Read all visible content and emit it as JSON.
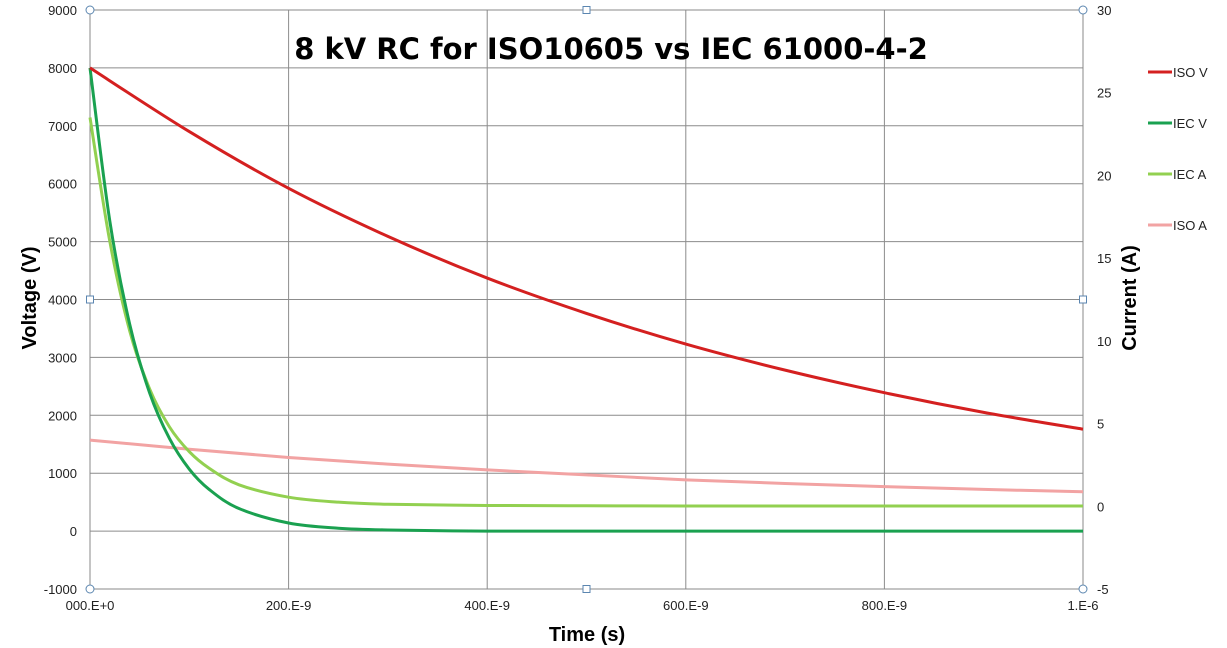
{
  "chart_data": {
    "type": "line",
    "title": "8 kV RC for  ISO10605 vs IEC 61000-4-2",
    "xlabel": "Time (s)",
    "ylabel": "Voltage (V)",
    "y2label": "Current (A)",
    "xlim": [
      0,
      1e-06
    ],
    "ylim": [
      -1000,
      9000
    ],
    "y2lim": [
      -5,
      30
    ],
    "x_ticks": [
      {
        "value": 0,
        "label": "000.E+0"
      },
      {
        "value": 2e-07,
        "label": "200.E-9"
      },
      {
        "value": 4e-07,
        "label": "400.E-9"
      },
      {
        "value": 6e-07,
        "label": "600.E-9"
      },
      {
        "value": 8e-07,
        "label": "800.E-9"
      },
      {
        "value": 1e-06,
        "label": "1.E-6"
      }
    ],
    "y_ticks": [
      {
        "value": -1000,
        "label": "-1000"
      },
      {
        "value": 0,
        "label": "0"
      },
      {
        "value": 1000,
        "label": "1000"
      },
      {
        "value": 2000,
        "label": "2000"
      },
      {
        "value": 3000,
        "label": "3000"
      },
      {
        "value": 4000,
        "label": "4000"
      },
      {
        "value": 5000,
        "label": "5000"
      },
      {
        "value": 6000,
        "label": "6000"
      },
      {
        "value": 7000,
        "label": "7000"
      },
      {
        "value": 8000,
        "label": "8000"
      },
      {
        "value": 9000,
        "label": "9000"
      }
    ],
    "y2_ticks": [
      {
        "value": -5,
        "label": "-5"
      },
      {
        "value": 0,
        "label": "0"
      },
      {
        "value": 5,
        "label": "5"
      },
      {
        "value": 10,
        "label": "10"
      },
      {
        "value": 15,
        "label": "15"
      },
      {
        "value": 20,
        "label": "20"
      },
      {
        "value": 25,
        "label": "25"
      },
      {
        "value": 30,
        "label": "30"
      }
    ],
    "grid": true,
    "legend_position": "right",
    "series": [
      {
        "name": "ISO V",
        "axis": "left",
        "color": "#d42020",
        "x": [
          0,
          1e-07,
          2e-07,
          3e-07,
          4e-07,
          5e-07,
          6e-07,
          7e-07,
          8e-07,
          9e-07,
          1e-06
        ],
        "y": [
          8000,
          6900,
          5920,
          5090,
          4370,
          3760,
          3230,
          2780,
          2390,
          2050,
          1760
        ]
      },
      {
        "name": "IEC V",
        "axis": "left",
        "color": "#1aa150",
        "x": [
          0,
          2e-08,
          4e-08,
          6e-08,
          8e-08,
          1e-07,
          1.2e-07,
          1.5e-07,
          2e-07,
          2.5e-07,
          3e-07,
          4e-07,
          5e-07,
          6e-07,
          8e-07,
          1e-06
        ],
        "y": [
          8000,
          5350,
          3570,
          2390,
          1600,
          1070,
          720,
          390,
          140,
          50,
          20,
          0,
          0,
          0,
          0,
          0
        ],
        "note": ""
      },
      {
        "name": "IEC A",
        "axis": "right",
        "color": "#92d050",
        "x": [
          0,
          2e-08,
          4e-08,
          6e-08,
          8e-08,
          1e-07,
          1.2e-07,
          1.5e-07,
          2e-07,
          2.5e-07,
          3e-07,
          4e-07,
          5e-07,
          6e-07,
          8e-07,
          1e-06
        ],
        "y": [
          23.5,
          16.0,
          10.6,
          7.1,
          4.8,
          3.3,
          2.3,
          1.3,
          0.55,
          0.25,
          0.12,
          0.05,
          0.03,
          0.02,
          0.02,
          0.02
        ]
      },
      {
        "name": "ISO A",
        "axis": "right",
        "color": "#f2a3a3",
        "x": [
          0,
          1e-07,
          2e-07,
          3e-07,
          4e-07,
          5e-07,
          6e-07,
          7e-07,
          8e-07,
          9e-07,
          1e-06
        ],
        "y": [
          4.0,
          3.45,
          2.95,
          2.55,
          2.2,
          1.9,
          1.6,
          1.38,
          1.19,
          1.02,
          0.88
        ]
      }
    ]
  }
}
